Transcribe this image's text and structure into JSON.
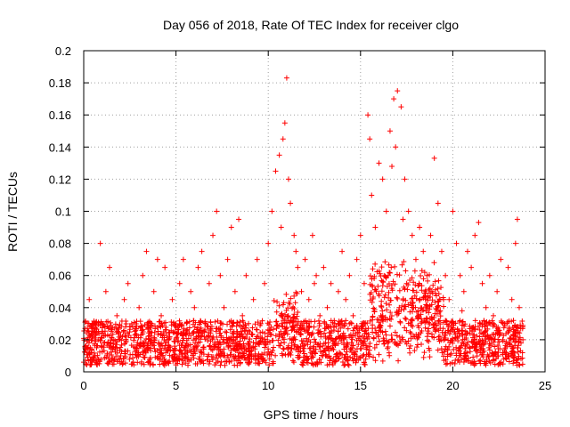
{
  "chart_data": {
    "type": "scatter",
    "title": "Day 056 of 2018, Rate Of TEC Index for receiver clgo",
    "xlabel": "GPS time / hours",
    "ylabel": "ROTI / TECUs",
    "xlim": [
      0,
      25
    ],
    "ylim": [
      0,
      0.2
    ],
    "xticks": [
      0,
      5,
      10,
      15,
      20,
      25
    ],
    "xtick_labels": [
      "0",
      "5",
      "10",
      "15",
      "20",
      "25"
    ],
    "yticks": [
      0,
      0.02,
      0.04,
      0.06,
      0.08,
      0.1,
      0.12,
      0.14,
      0.16,
      0.18,
      0.2
    ],
    "ytick_labels": [
      "0",
      "0.02",
      "0.04",
      "0.06",
      "0.08",
      "0.1",
      "0.12",
      "0.14",
      "0.16",
      "0.18",
      "0.2"
    ],
    "grid": true,
    "marker": "plus",
    "color": "#ff0000",
    "series": [
      {
        "name": "ROTI",
        "points": [
          [
            0.1,
            0.005
          ],
          [
            0.2,
            0.02
          ],
          [
            0.3,
            0.045
          ],
          [
            0.5,
            0.03
          ],
          [
            0.7,
            0.015
          ],
          [
            0.9,
            0.08
          ],
          [
            1.0,
            0.025
          ],
          [
            1.2,
            0.05
          ],
          [
            1.4,
            0.065
          ],
          [
            1.6,
            0.02
          ],
          [
            1.8,
            0.035
          ],
          [
            2.0,
            0.01
          ],
          [
            2.2,
            0.045
          ],
          [
            2.4,
            0.055
          ],
          [
            2.6,
            0.03
          ],
          [
            2.8,
            0.015
          ],
          [
            3.0,
            0.04
          ],
          [
            3.2,
            0.06
          ],
          [
            3.4,
            0.075
          ],
          [
            3.6,
            0.025
          ],
          [
            3.8,
            0.05
          ],
          [
            4.0,
            0.07
          ],
          [
            4.2,
            0.035
          ],
          [
            4.4,
            0.065
          ],
          [
            4.6,
            0.02
          ],
          [
            4.8,
            0.045
          ],
          [
            5.0,
            0.03
          ],
          [
            5.2,
            0.055
          ],
          [
            5.4,
            0.07
          ],
          [
            5.6,
            0.025
          ],
          [
            5.8,
            0.05
          ],
          [
            6.0,
            0.04
          ],
          [
            6.2,
            0.065
          ],
          [
            6.4,
            0.075
          ],
          [
            6.6,
            0.03
          ],
          [
            6.8,
            0.055
          ],
          [
            7.0,
            0.085
          ],
          [
            7.2,
            0.1
          ],
          [
            7.4,
            0.06
          ],
          [
            7.6,
            0.04
          ],
          [
            7.8,
            0.07
          ],
          [
            8.0,
            0.09
          ],
          [
            8.2,
            0.05
          ],
          [
            8.4,
            0.095
          ],
          [
            8.6,
            0.035
          ],
          [
            8.8,
            0.06
          ],
          [
            9.0,
            0.025
          ],
          [
            9.2,
            0.045
          ],
          [
            9.4,
            0.07
          ],
          [
            9.6,
            0.03
          ],
          [
            9.8,
            0.055
          ],
          [
            10.0,
            0.08
          ],
          [
            10.2,
            0.1
          ],
          [
            10.4,
            0.125
          ],
          [
            10.6,
            0.135
          ],
          [
            10.8,
            0.145
          ],
          [
            10.9,
            0.155
          ],
          [
            11.0,
            0.183
          ],
          [
            11.1,
            0.12
          ],
          [
            11.2,
            0.105
          ],
          [
            11.4,
            0.085
          ],
          [
            11.6,
            0.065
          ],
          [
            11.8,
            0.05
          ],
          [
            12.0,
            0.07
          ],
          [
            12.2,
            0.045
          ],
          [
            12.4,
            0.085
          ],
          [
            12.6,
            0.06
          ],
          [
            12.8,
            0.035
          ],
          [
            13.0,
            0.065
          ],
          [
            13.2,
            0.04
          ],
          [
            13.4,
            0.055
          ],
          [
            13.6,
            0.03
          ],
          [
            13.8,
            0.05
          ],
          [
            14.0,
            0.075
          ],
          [
            14.2,
            0.045
          ],
          [
            14.4,
            0.06
          ],
          [
            14.6,
            0.035
          ],
          [
            14.8,
            0.07
          ],
          [
            15.0,
            0.085
          ],
          [
            15.2,
            0.055
          ],
          [
            15.4,
            0.16
          ],
          [
            15.6,
            0.11
          ],
          [
            15.8,
            0.09
          ],
          [
            16.0,
            0.13
          ],
          [
            16.2,
            0.12
          ],
          [
            16.4,
            0.1
          ],
          [
            16.6,
            0.15
          ],
          [
            16.8,
            0.17
          ],
          [
            17.0,
            0.175
          ],
          [
            17.2,
            0.165
          ],
          [
            17.4,
            0.12
          ],
          [
            17.6,
            0.1
          ],
          [
            17.8,
            0.085
          ],
          [
            18.0,
            0.07
          ],
          [
            18.2,
            0.09
          ],
          [
            18.4,
            0.075
          ],
          [
            18.6,
            0.06
          ],
          [
            18.8,
            0.085
          ],
          [
            19.0,
            0.133
          ],
          [
            19.2,
            0.105
          ],
          [
            19.4,
            0.075
          ],
          [
            19.6,
            0.06
          ],
          [
            19.8,
            0.045
          ],
          [
            20.0,
            0.1
          ],
          [
            20.2,
            0.08
          ],
          [
            20.4,
            0.06
          ],
          [
            20.6,
            0.05
          ],
          [
            20.8,
            0.075
          ],
          [
            21.0,
            0.065
          ],
          [
            21.2,
            0.085
          ],
          [
            21.4,
            0.093
          ],
          [
            21.6,
            0.055
          ],
          [
            21.8,
            0.04
          ],
          [
            22.0,
            0.06
          ],
          [
            22.2,
            0.035
          ],
          [
            22.4,
            0.05
          ],
          [
            22.6,
            0.07
          ],
          [
            22.8,
            0.03
          ],
          [
            23.0,
            0.065
          ],
          [
            23.2,
            0.045
          ],
          [
            23.4,
            0.08
          ],
          [
            23.5,
            0.095
          ],
          [
            23.6,
            0.04
          ],
          [
            23.8,
            0.02
          ],
          [
            0.4,
            0.012
          ],
          [
            1.1,
            0.018
          ],
          [
            2.1,
            0.022
          ],
          [
            3.1,
            0.016
          ],
          [
            4.1,
            0.014
          ],
          [
            5.1,
            0.019
          ],
          [
            6.1,
            0.021
          ],
          [
            7.1,
            0.017
          ],
          [
            8.1,
            0.024
          ],
          [
            9.1,
            0.013
          ],
          [
            10.1,
            0.026
          ],
          [
            11.3,
            0.028
          ],
          [
            12.1,
            0.019
          ],
          [
            13.1,
            0.022
          ],
          [
            14.1,
            0.018
          ],
          [
            15.1,
            0.027
          ],
          [
            16.1,
            0.035
          ],
          [
            17.1,
            0.04
          ],
          [
            18.1,
            0.033
          ],
          [
            19.1,
            0.029
          ],
          [
            20.1,
            0.025
          ],
          [
            21.1,
            0.023
          ],
          [
            22.1,
            0.02
          ],
          [
            23.1,
            0.017
          ],
          [
            16.5,
            0.06
          ],
          [
            17.5,
            0.055
          ],
          [
            16.9,
            0.14
          ],
          [
            16.7,
            0.128
          ],
          [
            17.3,
            0.095
          ],
          [
            15.5,
            0.145
          ],
          [
            10.7,
            0.09
          ],
          [
            11.5,
            0.075
          ],
          [
            12.5,
            0.055
          ],
          [
            18.5,
            0.05
          ],
          [
            19.5,
            0.045
          ],
          [
            20.5,
            0.038
          ]
        ]
      }
    ]
  }
}
